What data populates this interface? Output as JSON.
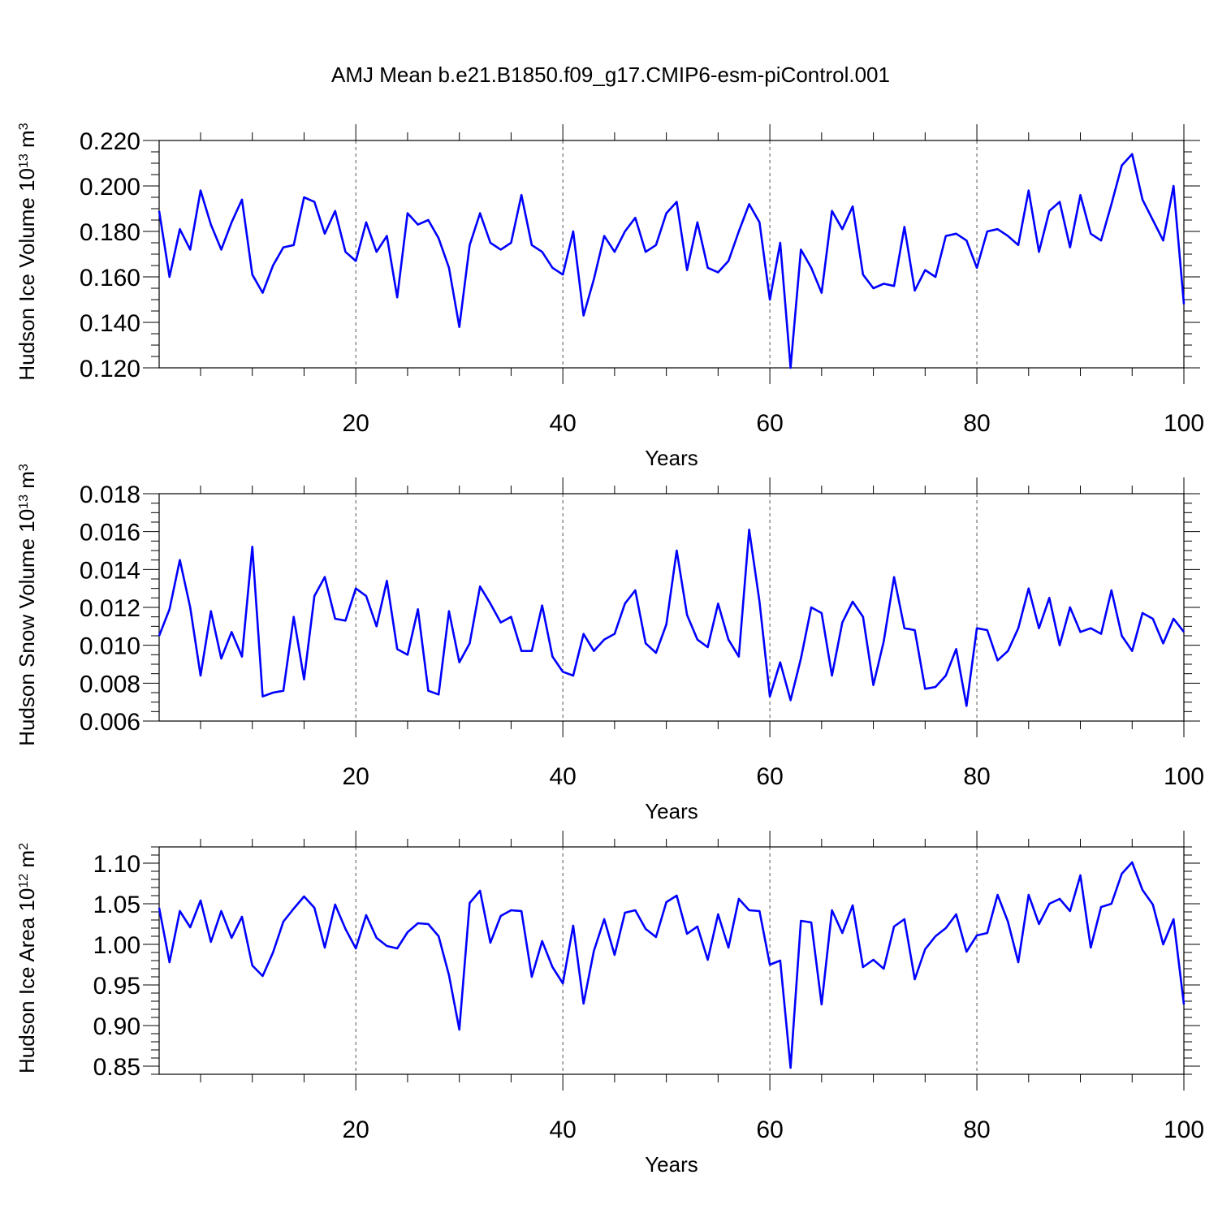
{
  "title": "AMJ Mean b.e21.B1850.f09_g17.CMIP6-esm-piControl.001",
  "colors": {
    "line": "#0000ff",
    "frame": "#000000",
    "grid": "#555555"
  },
  "chart_data": [
    {
      "type": "line",
      "xlabel": "Years",
      "ylabel": {
        "text": "Hudson Ice Volume 10",
        "sup1": "13",
        "mid": " m",
        "sup2": "3"
      },
      "xlim": [
        1,
        100
      ],
      "ylim": [
        0.12,
        0.22
      ],
      "xticks": [
        20,
        40,
        60,
        80,
        100
      ],
      "yticks": [
        0.12,
        0.14,
        0.16,
        0.18,
        0.2,
        0.22
      ],
      "ytick_labels": [
        "0.120",
        "0.140",
        "0.160",
        "0.180",
        "0.200",
        "0.220"
      ],
      "y_minor_step": 0.005,
      "grid": "dashed vertical at major x ticks",
      "series": [
        {
          "values": [
            0.189,
            0.16,
            0.181,
            0.172,
            0.198,
            0.183,
            0.172,
            0.184,
            0.194,
            0.161,
            0.153,
            0.165,
            0.173,
            0.174,
            0.195,
            0.193,
            0.179,
            0.189,
            0.171,
            0.167,
            0.184,
            0.171,
            0.178,
            0.151,
            0.188,
            0.183,
            0.185,
            0.177,
            0.164,
            0.138,
            0.174,
            0.188,
            0.175,
            0.172,
            0.175,
            0.196,
            0.174,
            0.171,
            0.164,
            0.161,
            0.18,
            0.143,
            0.159,
            0.178,
            0.171,
            0.18,
            0.186,
            0.171,
            0.174,
            0.188,
            0.193,
            0.163,
            0.184,
            0.164,
            0.162,
            0.167,
            0.18,
            0.192,
            0.184,
            0.15,
            0.175,
            0.12,
            0.172,
            0.164,
            0.153,
            0.189,
            0.181,
            0.191,
            0.161,
            0.155,
            0.157,
            0.156,
            0.182,
            0.154,
            0.163,
            0.16,
            0.178,
            0.179,
            0.176,
            0.164,
            0.18,
            0.181,
            0.178,
            0.174,
            0.198,
            0.171,
            0.189,
            0.193,
            0.173,
            0.196,
            0.179,
            0.176,
            0.192,
            0.209,
            0.214,
            0.194,
            0.185,
            0.176,
            0.2,
            0.148
          ]
        }
      ]
    },
    {
      "type": "line",
      "xlabel": "Years",
      "ylabel": {
        "text": "Hudson Snow Volume 10",
        "sup1": "13",
        "mid": " m",
        "sup2": "3"
      },
      "xlim": [
        1,
        100
      ],
      "ylim": [
        0.006,
        0.018
      ],
      "xticks": [
        20,
        40,
        60,
        80,
        100
      ],
      "yticks": [
        0.006,
        0.008,
        0.01,
        0.012,
        0.014,
        0.016,
        0.018
      ],
      "ytick_labels": [
        "0.006",
        "0.008",
        "0.010",
        "0.012",
        "0.014",
        "0.016",
        "0.018"
      ],
      "y_minor_step": 0.0005,
      "grid": "dashed vertical at major x ticks",
      "series": [
        {
          "values": [
            0.0105,
            0.0119,
            0.0145,
            0.012,
            0.0084,
            0.0118,
            0.0093,
            0.0107,
            0.0094,
            0.0152,
            0.0073,
            0.0075,
            0.0076,
            0.0115,
            0.0082,
            0.0126,
            0.0136,
            0.0114,
            0.0113,
            0.013,
            0.0126,
            0.011,
            0.0134,
            0.0098,
            0.0095,
            0.0119,
            0.0076,
            0.0074,
            0.0118,
            0.0091,
            0.0101,
            0.0131,
            0.0122,
            0.0112,
            0.0115,
            0.0097,
            0.0097,
            0.0121,
            0.0094,
            0.0086,
            0.0084,
            0.0106,
            0.0097,
            0.0103,
            0.0106,
            0.0122,
            0.0129,
            0.0101,
            0.0096,
            0.0111,
            0.015,
            0.0116,
            0.0103,
            0.0099,
            0.0122,
            0.0103,
            0.0094,
            0.0161,
            0.0123,
            0.0073,
            0.0091,
            0.0071,
            0.0093,
            0.012,
            0.0117,
            0.0084,
            0.0112,
            0.0123,
            0.0115,
            0.0079,
            0.0102,
            0.0136,
            0.0109,
            0.0108,
            0.0077,
            0.0078,
            0.0084,
            0.0098,
            0.0068,
            0.0109,
            0.0108,
            0.0092,
            0.0097,
            0.0109,
            0.013,
            0.0109,
            0.0125,
            0.01,
            0.012,
            0.0107,
            0.0109,
            0.0106,
            0.0129,
            0.0105,
            0.0097,
            0.0117,
            0.0114,
            0.0101,
            0.0114,
            0.0107
          ]
        }
      ]
    },
    {
      "type": "line",
      "xlabel": "Years",
      "ylabel": {
        "text": "Hudson Ice Area 10",
        "sup1": "12",
        "mid": " m",
        "sup2": "2"
      },
      "xlim": [
        1,
        100
      ],
      "ylim": [
        0.84,
        1.12
      ],
      "xticks": [
        20,
        40,
        60,
        80,
        100
      ],
      "yticks": [
        0.85,
        0.9,
        0.95,
        1.0,
        1.05,
        1.1
      ],
      "ytick_labels": [
        "0.85",
        "0.90",
        "0.95",
        "1.00",
        "1.05",
        "1.10"
      ],
      "y_minor_step": 0.01,
      "grid": "dashed vertical at major x ticks",
      "series": [
        {
          "values": [
            1.045,
            0.978,
            1.041,
            1.021,
            1.054,
            1.003,
            1.041,
            1.008,
            1.034,
            0.974,
            0.961,
            0.99,
            1.028,
            1.044,
            1.059,
            1.045,
            0.996,
            1.049,
            1.019,
            0.995,
            1.036,
            1.008,
            0.998,
            0.995,
            1.015,
            1.026,
            1.025,
            1.01,
            0.962,
            0.895,
            1.051,
            1.066,
            1.002,
            1.035,
            1.042,
            1.041,
            0.96,
            1.004,
            0.972,
            0.952,
            1.023,
            0.927,
            0.992,
            1.031,
            0.987,
            1.039,
            1.042,
            1.019,
            1.009,
            1.052,
            1.06,
            1.013,
            1.022,
            0.981,
            1.037,
            0.996,
            1.056,
            1.042,
            1.041,
            0.975,
            0.98,
            0.848,
            1.029,
            1.027,
            0.926,
            1.042,
            1.014,
            1.048,
            0.972,
            0.981,
            0.97,
            1.022,
            1.031,
            0.957,
            0.994,
            1.01,
            1.02,
            1.037,
            0.991,
            1.011,
            1.014,
            1.061,
            1.028,
            0.978,
            1.061,
            1.025,
            1.05,
            1.056,
            1.041,
            1.085,
            0.996,
            1.046,
            1.05,
            1.087,
            1.101,
            1.067,
            1.049,
            1.0,
            1.031,
            0.926
          ]
        }
      ]
    }
  ]
}
